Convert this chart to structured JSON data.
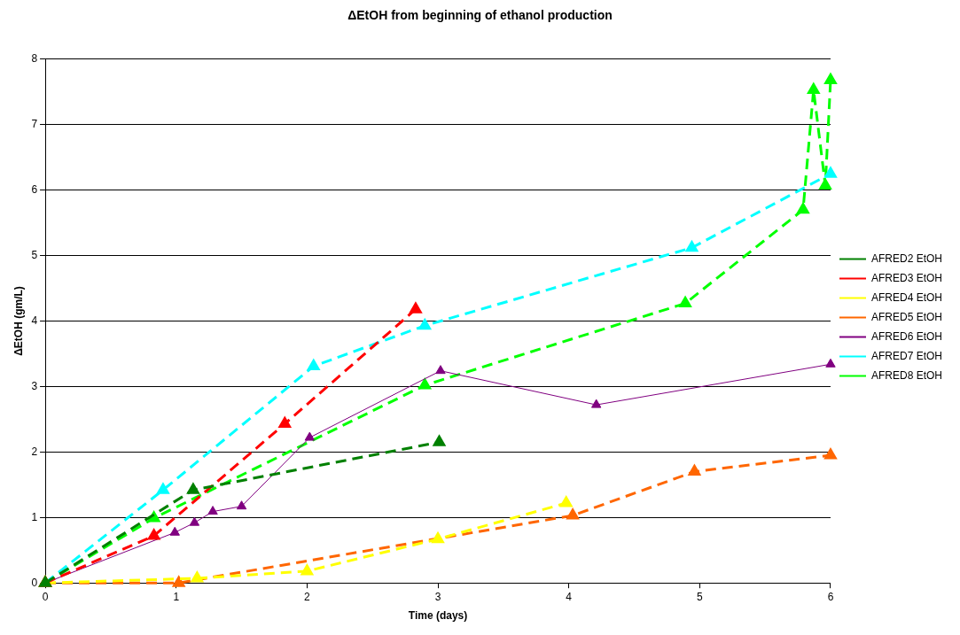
{
  "chart_data": {
    "type": "line",
    "title": "ΔEtOH from beginning of ethanol production",
    "xlabel": "Time (days)",
    "ylabel": "ΔEtOH (gm/L)",
    "xlim": [
      0,
      6
    ],
    "xticks": [
      0,
      1,
      2,
      3,
      4,
      5,
      6
    ],
    "ylim": [
      0,
      8
    ],
    "yticks": [
      0,
      1,
      2,
      3,
      4,
      5,
      6,
      7,
      8
    ],
    "grid": "y",
    "legend": "right",
    "marker": "triangle",
    "series": [
      {
        "name": "AFRED2 EtOH",
        "color": "#008000",
        "line_style": "dashed",
        "x": [
          0,
          1.13,
          3.01
        ],
        "values": [
          0,
          1.42,
          2.15
        ]
      },
      {
        "name": "AFRED3 EtOH",
        "color": "#ff0000",
        "line_style": "dashed",
        "x": [
          0,
          0.83,
          1.83,
          2.83
        ],
        "values": [
          0,
          0.72,
          2.43,
          4.18
        ]
      },
      {
        "name": "AFRED4 EtOH",
        "color": "#ffff00",
        "line_style": "dashed",
        "x": [
          0,
          1.16,
          2,
          3,
          3.98
        ],
        "values": [
          0,
          0.07,
          0.18,
          0.67,
          1.22
        ]
      },
      {
        "name": "AFRED5 EtOH",
        "color": "#ff6600",
        "line_style": "dashed",
        "x": [
          0,
          1.02,
          4.03,
          4.96,
          6
        ],
        "values": [
          0,
          0,
          1.03,
          1.7,
          1.95
        ]
      },
      {
        "name": "AFRED6 EtOH",
        "color": "#800080",
        "line_style": "solid",
        "x": [
          0,
          0.99,
          1.14,
          1.28,
          1.5,
          2.02,
          3.02,
          4.21,
          6
        ],
        "values": [
          0,
          0.77,
          0.92,
          1.09,
          1.17,
          2.22,
          3.24,
          2.72,
          3.34
        ]
      },
      {
        "name": "AFRED7 EtOH",
        "color": "#00ffff",
        "line_style": "dashed",
        "x": [
          0,
          0.9,
          2.05,
          2.9,
          4.94,
          6
        ],
        "values": [
          0,
          1.42,
          3.31,
          3.93,
          5.12,
          6.25
        ]
      },
      {
        "name": "AFRED8 EtOH",
        "color": "#00ff00",
        "line_style": "dashed",
        "x": [
          0,
          0.83,
          2.9,
          4.89,
          5.79,
          5.87,
          5.96,
          6
        ],
        "values": [
          0,
          0.99,
          3.02,
          4.27,
          5.7,
          7.53,
          6.07,
          7.68
        ]
      }
    ]
  }
}
